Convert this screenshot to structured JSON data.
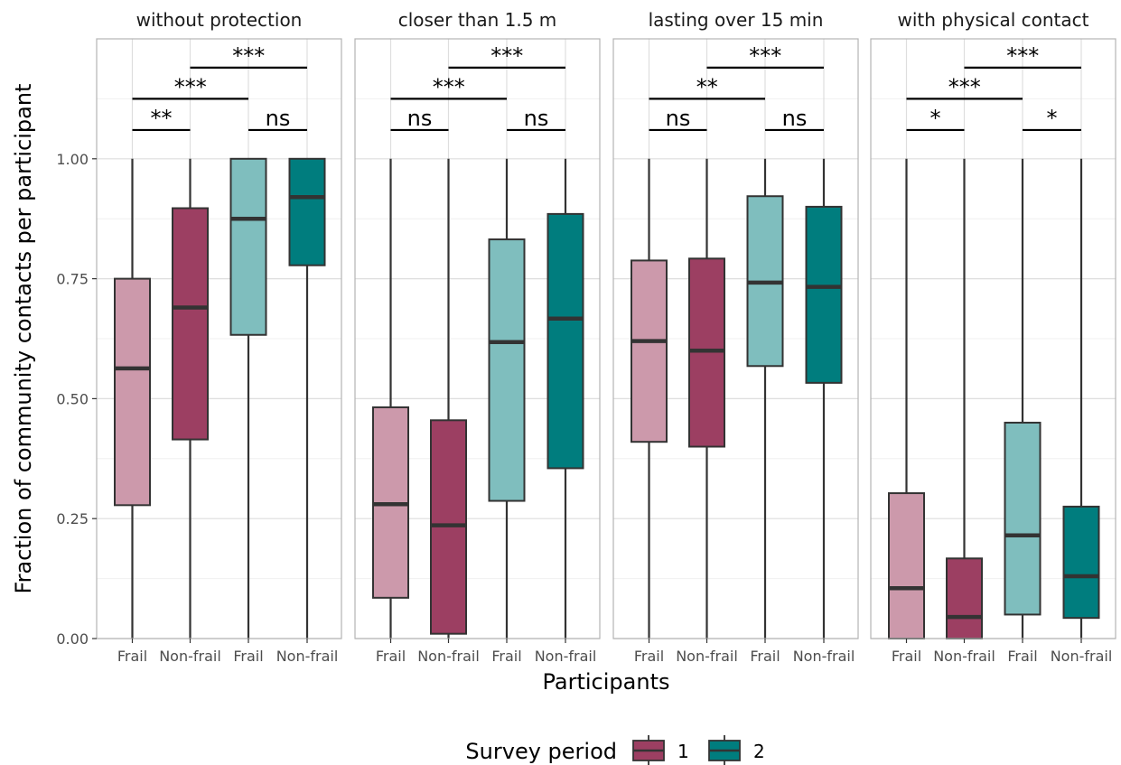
{
  "chart_data": {
    "type": "box",
    "xlabel": "Participants",
    "ylabel": "Fraction of community contacts per participant",
    "ylim": [
      0,
      1.25
    ],
    "yticks": [
      0.0,
      0.25,
      0.5,
      0.75,
      1.0
    ],
    "ytick_labels": [
      "0.00",
      "0.25",
      "0.50",
      "0.75",
      "1.00"
    ],
    "categories": [
      "Frail",
      "Non-frail",
      "Frail",
      "Non-frail"
    ],
    "grid": true,
    "legend": {
      "title": "Survey period",
      "position": "bottom",
      "entries": [
        {
          "label": "1",
          "color": "#9c3f62"
        },
        {
          "label": "2",
          "color": "#007d7e"
        }
      ]
    },
    "colors": {
      "frail_1": "#cc99ab",
      "nonfrail_1": "#9c3f62",
      "frail_2": "#7fbebe",
      "nonfrail_2": "#007d7e"
    },
    "panels": [
      {
        "title": "without protection",
        "boxes": [
          {
            "category": "Frail",
            "period": "1",
            "min": 0.0,
            "q1": 0.278,
            "median": 0.563,
            "q3": 0.75,
            "max": 1.0
          },
          {
            "category": "Non-frail",
            "period": "1",
            "min": 0.0,
            "q1": 0.415,
            "median": 0.69,
            "q3": 0.897,
            "max": 1.0
          },
          {
            "category": "Frail",
            "period": "2",
            "min": 0.0,
            "q1": 0.633,
            "median": 0.875,
            "q3": 1.0,
            "max": 1.0
          },
          {
            "category": "Non-frail",
            "period": "2",
            "min": 0.0,
            "q1": 0.778,
            "median": 0.92,
            "q3": 1.0,
            "max": 1.0
          }
        ],
        "significance": [
          {
            "from": 0,
            "to": 1,
            "label": "**",
            "level": 1
          },
          {
            "from": 2,
            "to": 3,
            "label": "ns",
            "level": 1
          },
          {
            "from": 0,
            "to": 2,
            "label": "***",
            "level": 2
          },
          {
            "from": 1,
            "to": 3,
            "label": "***",
            "level": 3
          }
        ]
      },
      {
        "title": "closer than 1.5 m",
        "boxes": [
          {
            "category": "Frail",
            "period": "1",
            "min": 0.0,
            "q1": 0.085,
            "median": 0.28,
            "q3": 0.482,
            "max": 1.0
          },
          {
            "category": "Non-frail",
            "period": "1",
            "min": 0.0,
            "q1": 0.01,
            "median": 0.236,
            "q3": 0.455,
            "max": 1.0
          },
          {
            "category": "Frail",
            "period": "2",
            "min": 0.0,
            "q1": 0.287,
            "median": 0.618,
            "q3": 0.832,
            "max": 1.0
          },
          {
            "category": "Non-frail",
            "period": "2",
            "min": 0.0,
            "q1": 0.355,
            "median": 0.667,
            "q3": 0.885,
            "max": 1.0
          }
        ],
        "significance": [
          {
            "from": 0,
            "to": 1,
            "label": "ns",
            "level": 1
          },
          {
            "from": 2,
            "to": 3,
            "label": "ns",
            "level": 1
          },
          {
            "from": 0,
            "to": 2,
            "label": "***",
            "level": 2
          },
          {
            "from": 1,
            "to": 3,
            "label": "***",
            "level": 3
          }
        ]
      },
      {
        "title": "lasting over 15 min",
        "boxes": [
          {
            "category": "Frail",
            "period": "1",
            "min": 0.0,
            "q1": 0.41,
            "median": 0.62,
            "q3": 0.788,
            "max": 1.0
          },
          {
            "category": "Non-frail",
            "period": "1",
            "min": 0.0,
            "q1": 0.4,
            "median": 0.6,
            "q3": 0.792,
            "max": 1.0
          },
          {
            "category": "Frail",
            "period": "2",
            "min": 0.0,
            "q1": 0.568,
            "median": 0.742,
            "q3": 0.922,
            "max": 1.0
          },
          {
            "category": "Non-frail",
            "period": "2",
            "min": 0.0,
            "q1": 0.533,
            "median": 0.733,
            "q3": 0.9,
            "max": 1.0
          }
        ],
        "significance": [
          {
            "from": 0,
            "to": 1,
            "label": "ns",
            "level": 1
          },
          {
            "from": 2,
            "to": 3,
            "label": "ns",
            "level": 1
          },
          {
            "from": 0,
            "to": 2,
            "label": "**",
            "level": 2
          },
          {
            "from": 1,
            "to": 3,
            "label": "***",
            "level": 3
          }
        ]
      },
      {
        "title": "with physical contact",
        "boxes": [
          {
            "category": "Frail",
            "period": "1",
            "min": 0.0,
            "q1": 0.0,
            "median": 0.105,
            "q3": 0.303,
            "max": 1.0
          },
          {
            "category": "Non-frail",
            "period": "1",
            "min": 0.0,
            "q1": 0.0,
            "median": 0.045,
            "q3": 0.167,
            "max": 1.0
          },
          {
            "category": "Frail",
            "period": "2",
            "min": 0.0,
            "q1": 0.05,
            "median": 0.215,
            "q3": 0.45,
            "max": 1.0
          },
          {
            "category": "Non-frail",
            "period": "2",
            "min": 0.0,
            "q1": 0.043,
            "median": 0.13,
            "q3": 0.275,
            "max": 1.0
          }
        ],
        "significance": [
          {
            "from": 0,
            "to": 1,
            "label": "*",
            "level": 1
          },
          {
            "from": 2,
            "to": 3,
            "label": "*",
            "level": 1
          },
          {
            "from": 0,
            "to": 2,
            "label": "***",
            "level": 2
          },
          {
            "from": 1,
            "to": 3,
            "label": "***",
            "level": 3
          }
        ]
      }
    ]
  }
}
